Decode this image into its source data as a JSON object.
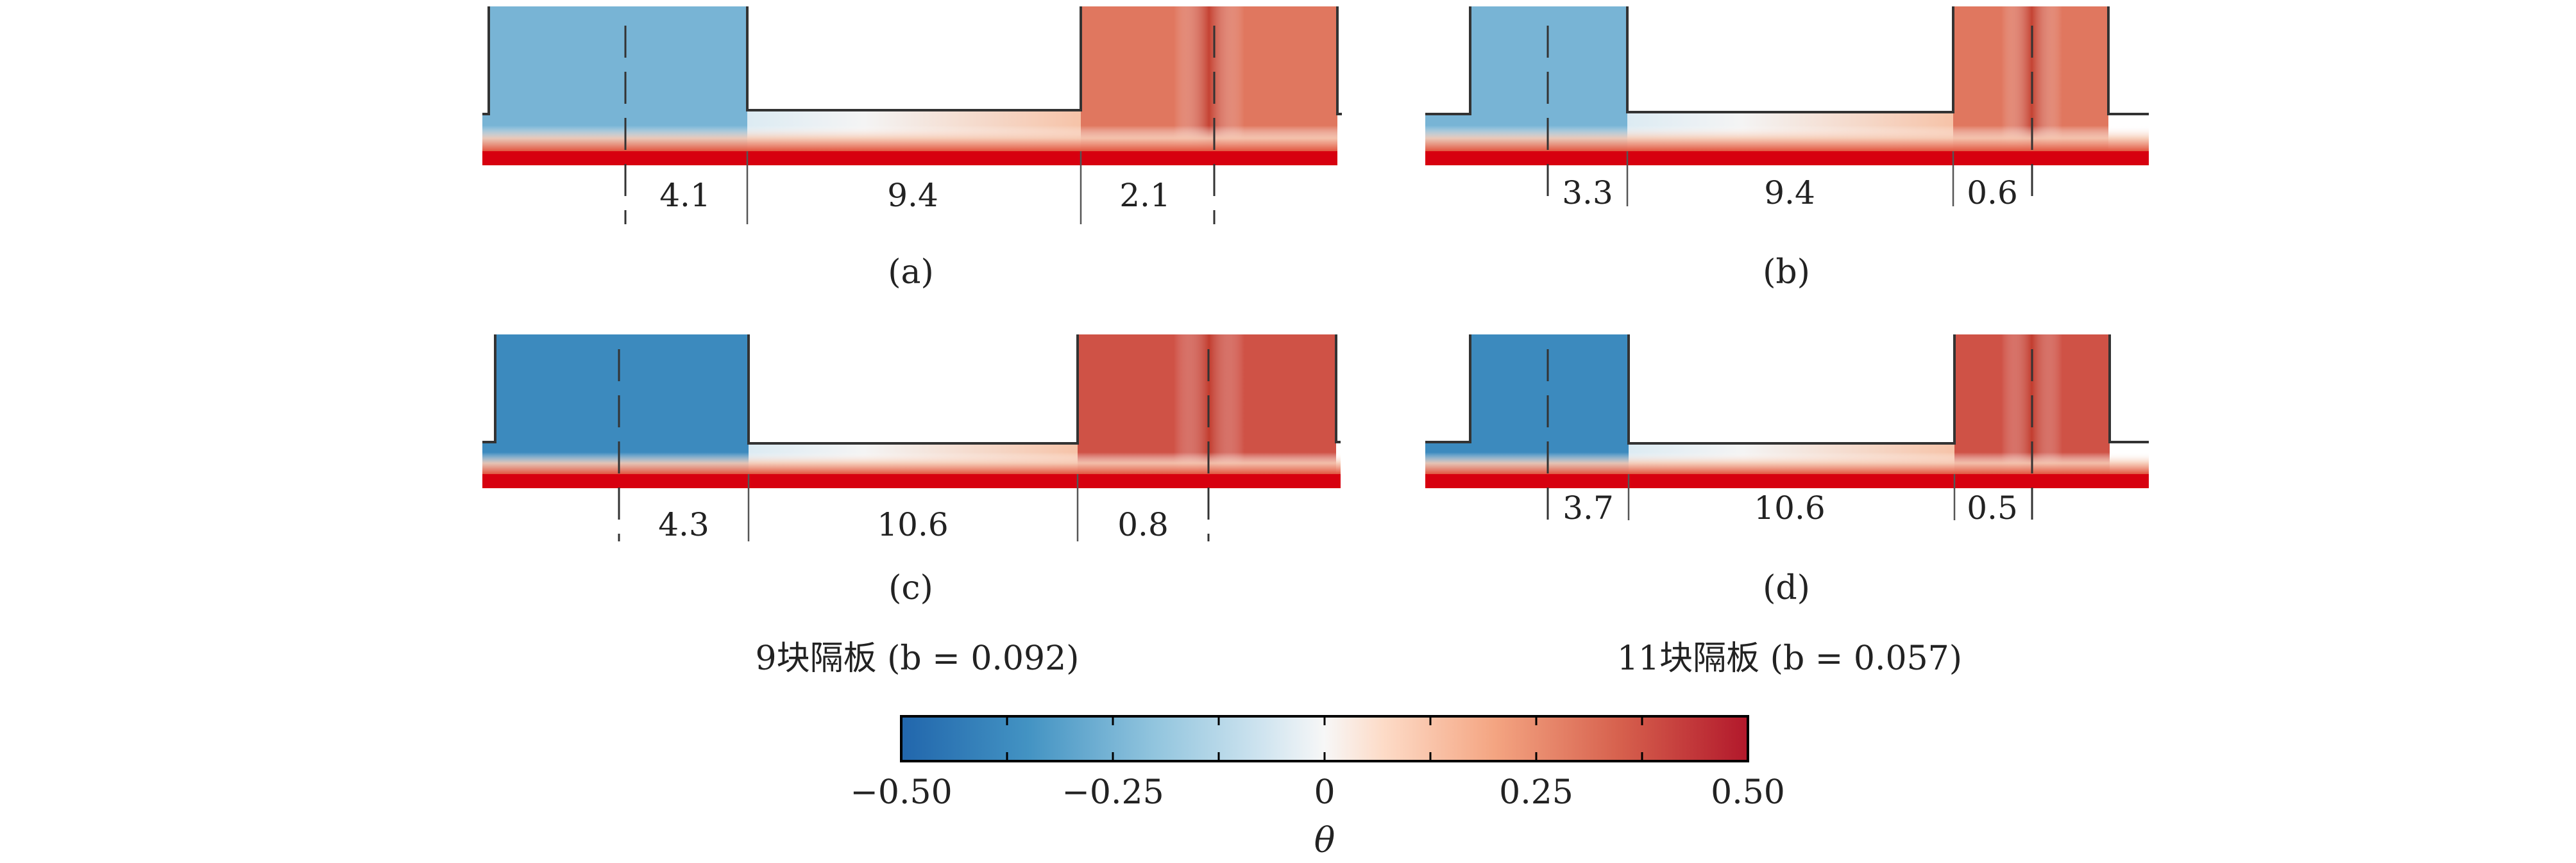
{
  "panels": [
    {
      "label": "(a)",
      "left_width": "4.1",
      "gap_width": "9.4",
      "right_width": "2.1",
      "cold_level": -0.25,
      "hot_level": 0.3
    },
    {
      "label": "(b)",
      "left_width": "3.3",
      "gap_width": "9.4",
      "right_width": "0.6",
      "cold_level": -0.25,
      "hot_level": 0.3
    },
    {
      "label": "(c)",
      "left_width": "4.3",
      "gap_width": "10.6",
      "right_width": "0.8",
      "cold_level": -0.38,
      "hot_level": 0.38
    },
    {
      "label": "(d)",
      "left_width": "3.7",
      "gap_width": "10.6",
      "right_width": "0.5",
      "cold_level": -0.38,
      "hot_level": 0.38
    }
  ],
  "captions": {
    "left": "9块隔板 (b = 0.092)",
    "right": "11块隔板 (b = 0.057)"
  },
  "colorbar": {
    "variable": "θ",
    "min": -0.5,
    "max": 0.5,
    "tick_labels": [
      "−0.50",
      "−0.25",
      "0",
      "0.25",
      "0.50"
    ],
    "colors": {
      "cold": "#2166ac",
      "neutral": "#f7f7f7",
      "hot": "#b2182b",
      "wall": "#d7000f"
    }
  }
}
